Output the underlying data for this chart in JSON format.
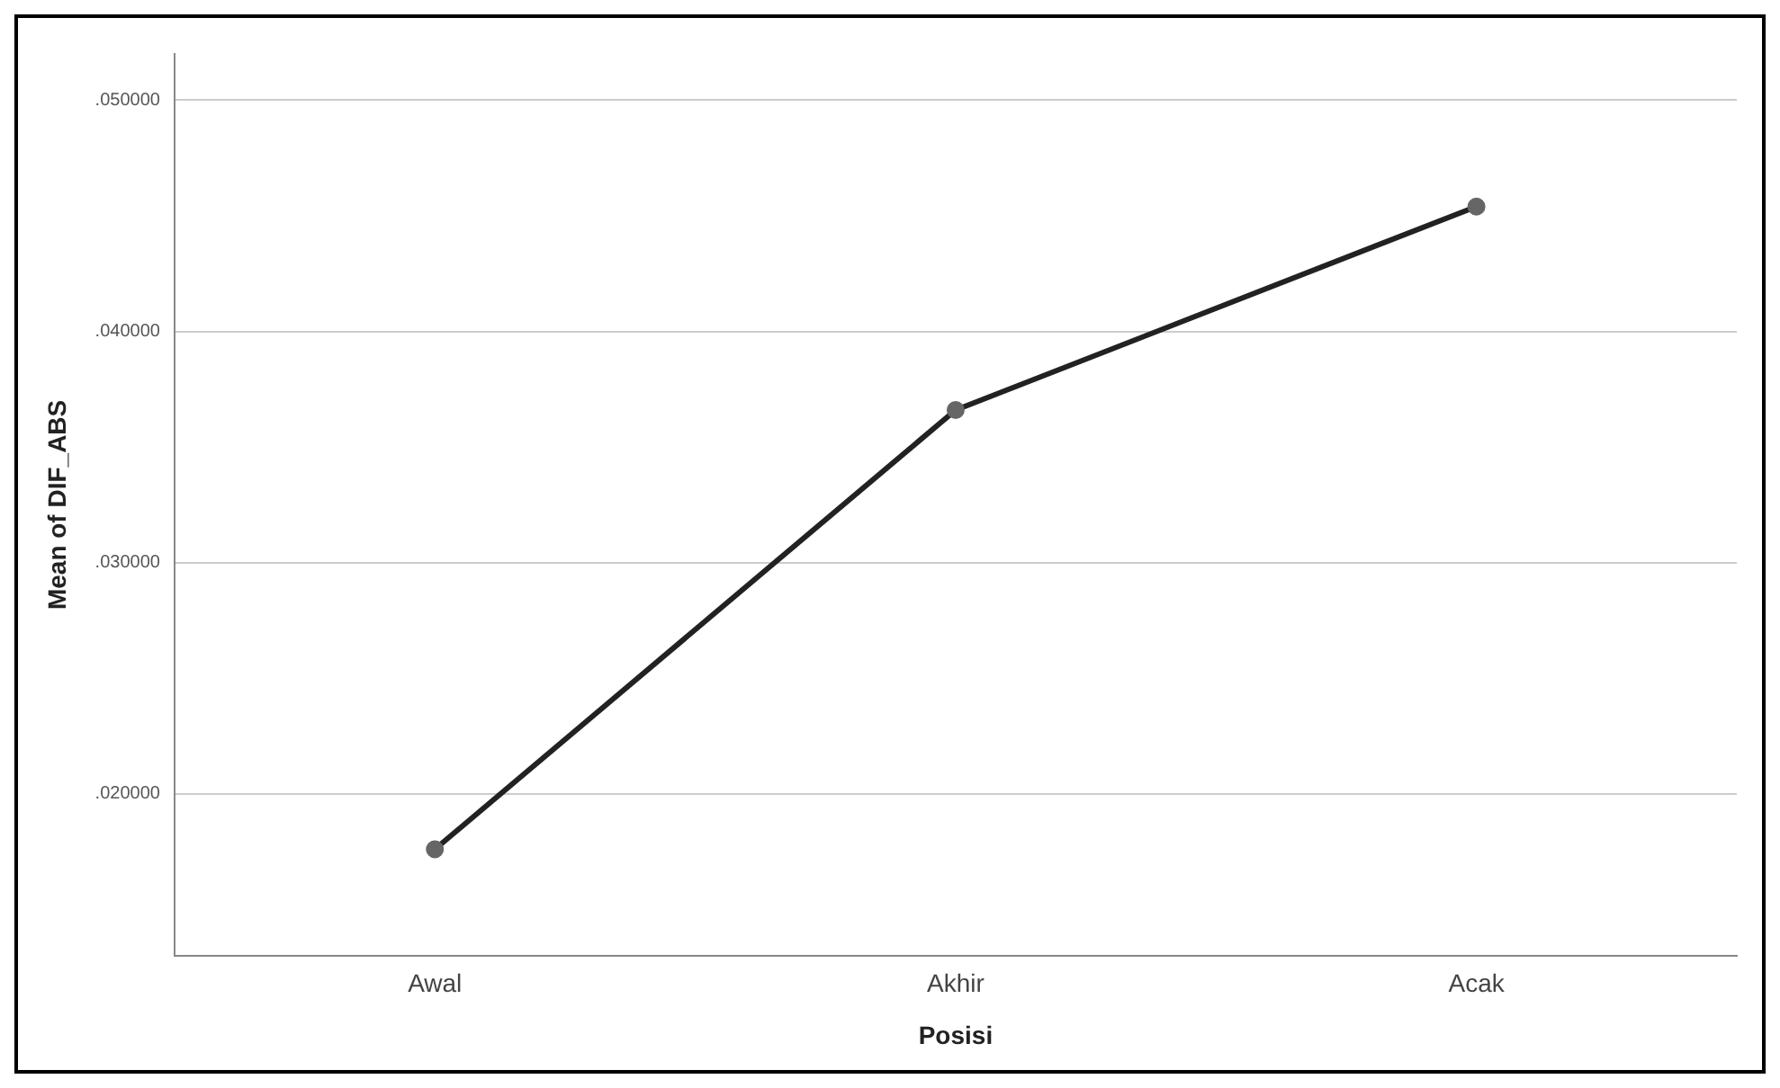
{
  "chart_data": {
    "type": "line",
    "xlabel": "Posisi",
    "ylabel": "Mean of DIF_ABS",
    "categories": [
      "Awal",
      "Akhir",
      "Acak"
    ],
    "series": [
      {
        "color": "#222222",
        "values": [
          0.0176,
          0.0366,
          0.0454
        ]
      }
    ],
    "ylim": [
      0.013,
      0.052
    ],
    "yticks": [
      {
        "value": 0.02,
        "label": ".020000"
      },
      {
        "value": 0.03,
        "label": ".030000"
      },
      {
        "value": 0.04,
        "label": ".040000"
      },
      {
        "value": 0.05,
        "label": ".050000"
      }
    ],
    "grid": "y",
    "legend": false,
    "marker": "circle",
    "line_style": "solid"
  }
}
